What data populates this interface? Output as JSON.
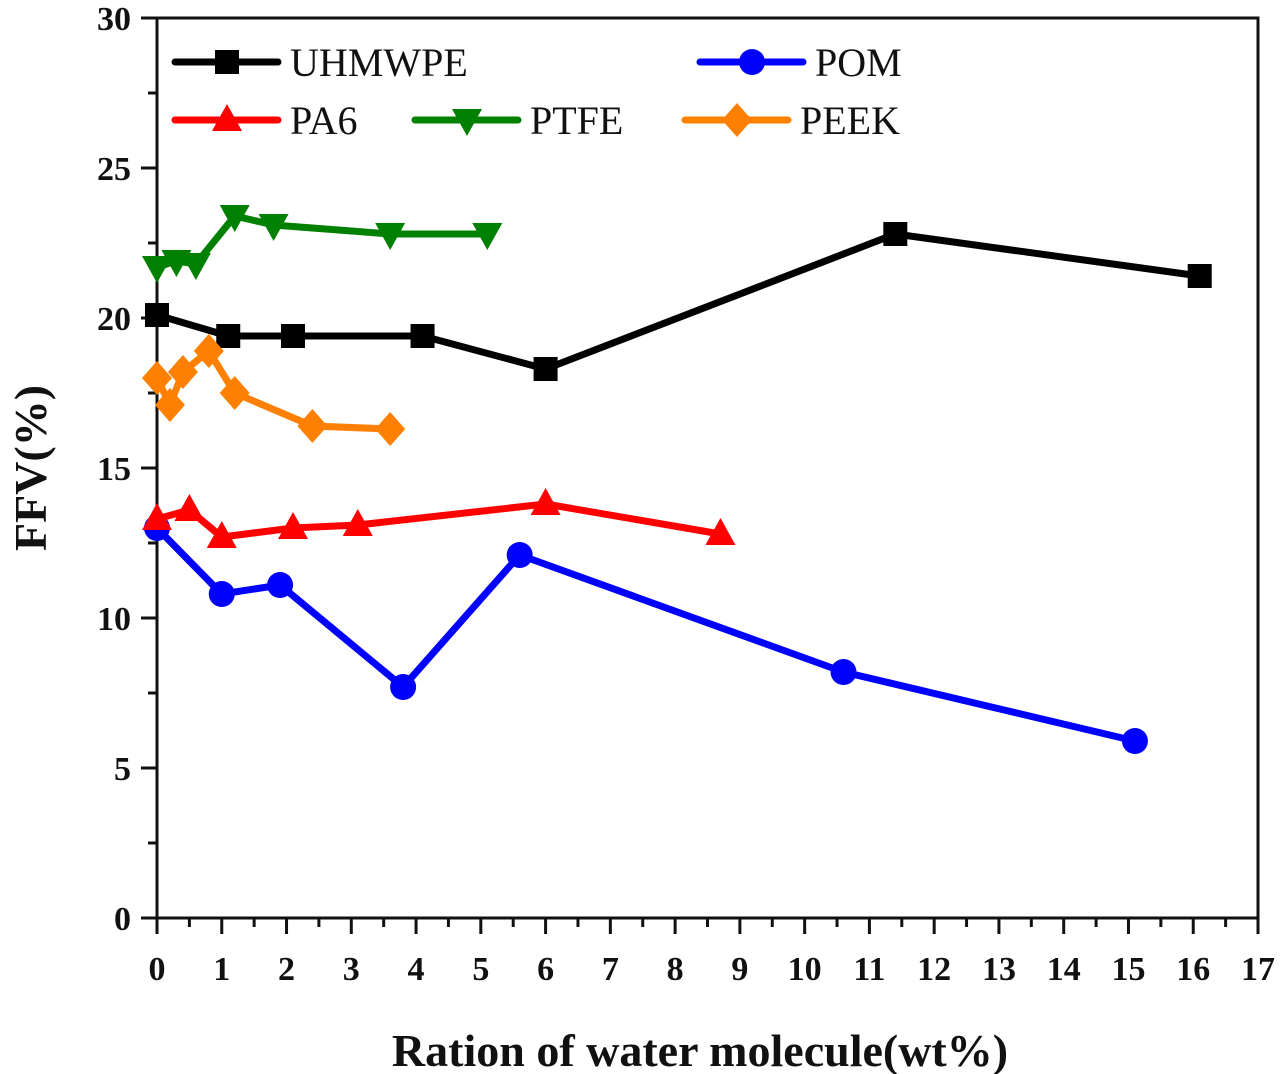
{
  "chart_data": {
    "type": "line",
    "title": "",
    "xlabel": "Ration of water molecule(wt%)",
    "ylabel": "FFV(%)",
    "xlim": [
      0,
      17
    ],
    "ylim": [
      0,
      30
    ],
    "xticks": [
      "0",
      "1",
      "2",
      "3",
      "4",
      "5",
      "6",
      "7",
      "8",
      "9",
      "10",
      "11",
      "12",
      "13",
      "14",
      "15",
      "16",
      "17"
    ],
    "yticks": [
      "0",
      "5",
      "10",
      "15",
      "20",
      "25",
      "30"
    ],
    "grid": false,
    "legend_position": "top",
    "series": [
      {
        "name": "UHMWPE",
        "color": "#000000",
        "marker": "square",
        "x": [
          0,
          1.1,
          2.1,
          4.1,
          6.0,
          11.4,
          16.1
        ],
        "y": [
          20.1,
          19.4,
          19.4,
          19.4,
          18.3,
          22.8,
          21.4
        ]
      },
      {
        "name": "POM",
        "color": "#0000ff",
        "marker": "circle",
        "x": [
          0,
          1.0,
          1.9,
          3.8,
          5.6,
          10.6,
          15.1
        ],
        "y": [
          13.0,
          10.8,
          11.1,
          7.7,
          12.1,
          8.2,
          5.9
        ]
      },
      {
        "name": "PA6",
        "color": "#ff0000",
        "marker": "triangle-up",
        "x": [
          0,
          0.5,
          1.0,
          2.1,
          3.1,
          6.0,
          8.7
        ],
        "y": [
          13.3,
          13.6,
          12.7,
          13.0,
          13.1,
          13.8,
          12.8
        ]
      },
      {
        "name": "PTFE",
        "color": "#008000",
        "marker": "triangle-down",
        "x": [
          0,
          0.3,
          0.6,
          1.2,
          1.8,
          3.6,
          5.1
        ],
        "y": [
          21.7,
          21.9,
          21.8,
          23.4,
          23.1,
          22.8,
          22.8
        ]
      },
      {
        "name": "PEEK",
        "color": "#ff8000",
        "marker": "diamond",
        "x": [
          0,
          0.2,
          0.4,
          0.8,
          1.2,
          2.4,
          3.6
        ],
        "y": [
          18.0,
          17.1,
          18.2,
          18.9,
          17.5,
          16.4,
          16.3
        ]
      }
    ]
  }
}
